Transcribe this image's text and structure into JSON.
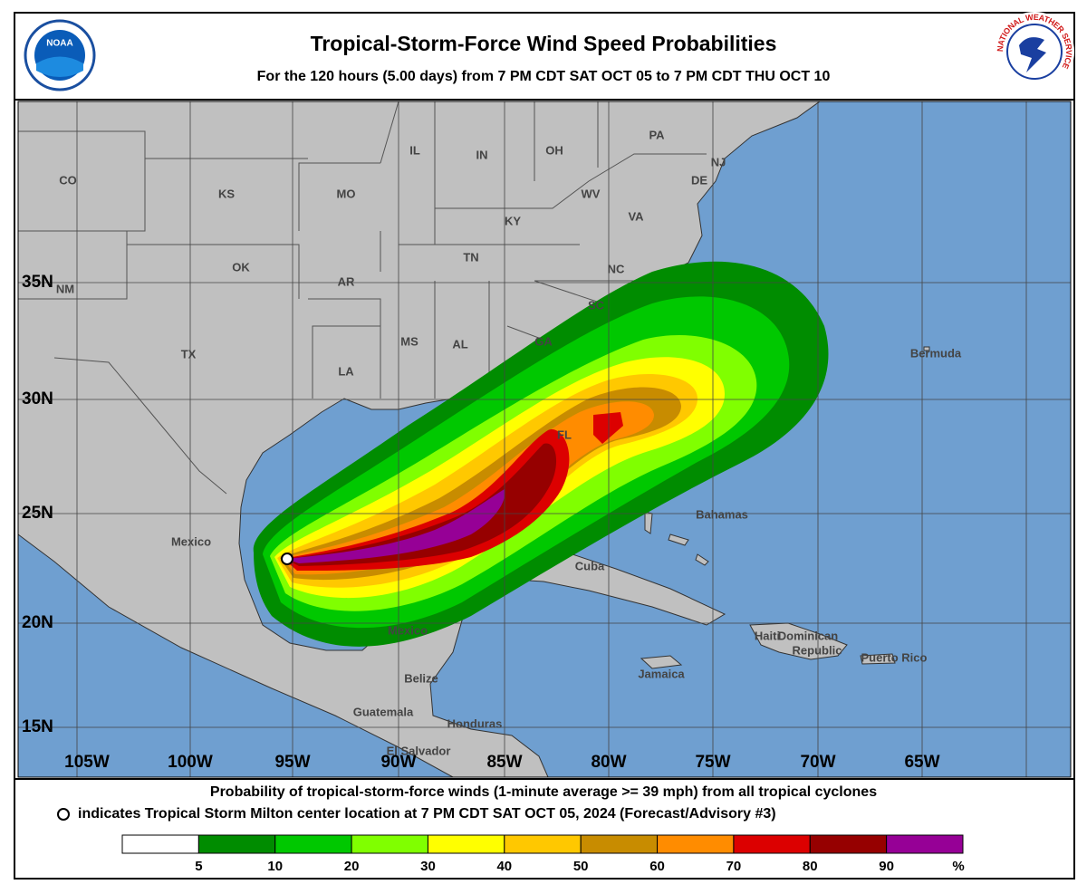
{
  "header": {
    "title": "Tropical-Storm-Force Wind Speed Probabilities",
    "subtitle": "For the 120 hours (5.00 days) from 7 PM CDT SAT OCT 05 to 7 PM CDT THU OCT 10",
    "left_logo": "NOAA",
    "right_logo": "NATIONAL WEATHER SERVICE"
  },
  "map": {
    "latitude_labels": [
      "35N",
      "30N",
      "25N",
      "20N",
      "15N"
    ],
    "longitude_labels": [
      "105W",
      "100W",
      "95W",
      "90W",
      "85W",
      "80W",
      "75W",
      "70W",
      "65W"
    ],
    "place_labels": [
      "CO",
      "KS",
      "MO",
      "IL",
      "IN",
      "OH",
      "PA",
      "NJ",
      "DE",
      "WV",
      "VA",
      "KY",
      "TN",
      "NC",
      "OK",
      "AR",
      "SC",
      "NM",
      "TX",
      "MS",
      "AL",
      "GA",
      "LA",
      "FL",
      "Mexico",
      "Bahamas",
      "Bermuda",
      "Mexico",
      "Cuba",
      "Haiti",
      "Dominican",
      "Republic",
      "Puerto Rico",
      "Jamaica",
      "Belize",
      "Guatemala",
      "Honduras",
      "El Salvador"
    ]
  },
  "footer": {
    "line1": "Probability of tropical-storm-force winds (1-minute average >= 39 mph) from all tropical cyclones",
    "line2": "indicates Tropical Storm Milton center location at 7 PM CDT SAT OCT 05, 2024 (Forecast/Advisory #3)",
    "legend": {
      "colors": [
        "#ffffff",
        "#008c00",
        "#00c800",
        "#80ff00",
        "#ffff00",
        "#ffc800",
        "#c88c00",
        "#ff8c00",
        "#dc0000",
        "#960000",
        "#960096"
      ],
      "labels": [
        "5",
        "10",
        "20",
        "30",
        "40",
        "50",
        "60",
        "70",
        "80",
        "90"
      ],
      "unit": "%"
    }
  }
}
